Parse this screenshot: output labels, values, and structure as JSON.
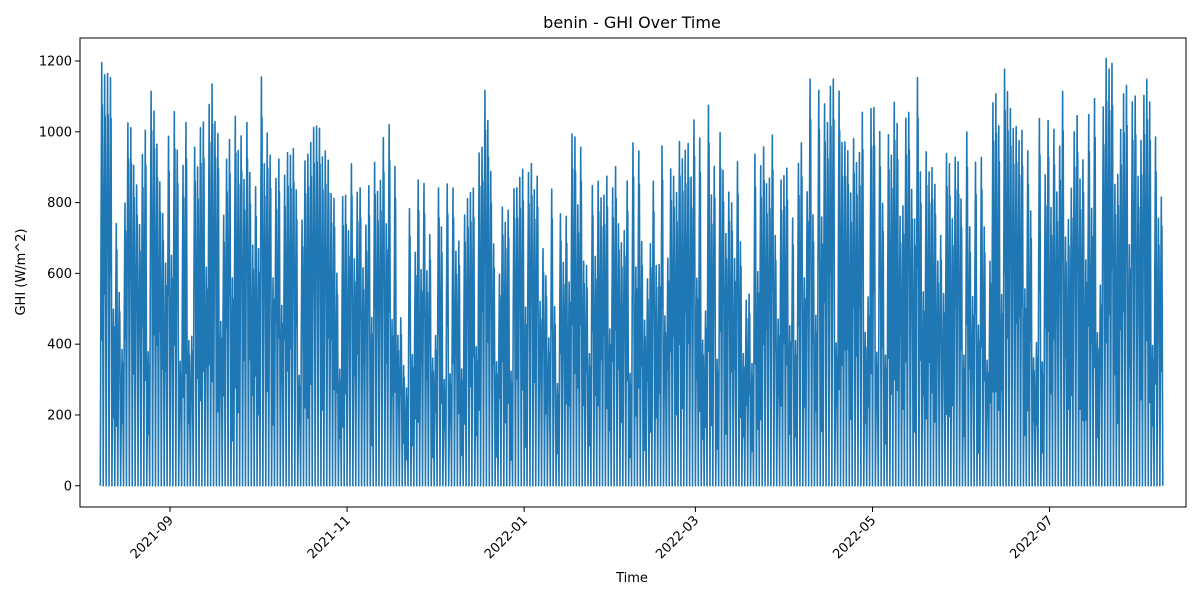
{
  "chart_data": {
    "type": "line",
    "title": "benin - GHI Over Time",
    "xlabel": "Time",
    "ylabel": "GHI (W/m^2)",
    "xlim": [
      "2021-08-01",
      "2022-08-17"
    ],
    "ylim": [
      -60,
      1265
    ],
    "x_ticks": [
      "2021-09",
      "2021-11",
      "2022-01",
      "2022-03",
      "2022-05",
      "2022-07"
    ],
    "y_ticks": [
      0,
      200,
      400,
      600,
      800,
      1000,
      1200
    ],
    "grid": false,
    "line_color": "#1f77b4",
    "series": [
      {
        "x_start": "2021-08-08",
        "x_end": "2022-08-08",
        "daily_peak_points": [
          [
            "2021-08-08",
            1210
          ],
          [
            "2021-08-11",
            1210
          ],
          [
            "2021-08-14",
            940
          ],
          [
            "2021-08-17",
            1210
          ],
          [
            "2021-08-20",
            950
          ],
          [
            "2021-08-23",
            1100
          ],
          [
            "2021-08-26",
            1210
          ],
          [
            "2021-08-29",
            780
          ],
          [
            "2021-09-01",
            1210
          ],
          [
            "2021-09-04",
            960
          ],
          [
            "2021-09-07",
            1060
          ],
          [
            "2021-09-10",
            1190
          ],
          [
            "2021-09-13",
            1040
          ],
          [
            "2021-09-16",
            1210
          ],
          [
            "2021-09-19",
            1080
          ],
          [
            "2021-09-22",
            980
          ],
          [
            "2021-09-25",
            1210
          ],
          [
            "2021-09-28",
            1000
          ],
          [
            "2021-10-01",
            1210
          ],
          [
            "2021-10-05",
            1000
          ],
          [
            "2021-10-10",
            980
          ],
          [
            "2021-10-15",
            990
          ],
          [
            "2021-10-20",
            1150
          ],
          [
            "2021-10-25",
            930
          ],
          [
            "2021-10-30",
            960
          ],
          [
            "2021-11-05",
            900
          ],
          [
            "2021-11-10",
            930
          ],
          [
            "2021-11-15",
            1040
          ],
          [
            "2021-11-20",
            920
          ],
          [
            "2021-11-25",
            915
          ],
          [
            "2021-11-30",
            1000
          ],
          [
            "2021-12-05",
            880
          ],
          [
            "2021-12-10",
            840
          ],
          [
            "2021-12-15",
            1020
          ],
          [
            "2021-12-18",
            1150
          ],
          [
            "2021-12-22",
            870
          ],
          [
            "2021-12-28",
            860
          ],
          [
            "2022-01-03",
            930
          ],
          [
            "2022-01-08",
            830
          ],
          [
            "2022-01-13",
            900
          ],
          [
            "2022-01-18",
            1065
          ],
          [
            "2022-01-23",
            940
          ],
          [
            "2022-01-28",
            950
          ],
          [
            "2022-02-02",
            960
          ],
          [
            "2022-02-07",
            990
          ],
          [
            "2022-02-12",
            960
          ],
          [
            "2022-02-17",
            980
          ],
          [
            "2022-02-22",
            1030
          ],
          [
            "2022-02-27",
            1040
          ],
          [
            "2022-03-04",
            1140
          ],
          [
            "2022-03-08",
            1040
          ],
          [
            "2022-03-12",
            880
          ],
          [
            "2022-03-16",
            940
          ],
          [
            "2022-03-21",
            960
          ],
          [
            "2022-03-26",
            1000
          ],
          [
            "2022-03-31",
            1020
          ],
          [
            "2022-04-05",
            1000
          ],
          [
            "2022-04-10",
            1195
          ],
          [
            "2022-04-15",
            1100
          ],
          [
            "2022-04-18",
            1210
          ],
          [
            "2022-04-22",
            1040
          ],
          [
            "2022-04-27",
            1060
          ],
          [
            "2022-05-01",
            1210
          ],
          [
            "2022-05-05",
            1100
          ],
          [
            "2022-05-10",
            1080
          ],
          [
            "2022-05-15",
            1210
          ],
          [
            "2022-05-20",
            960
          ],
          [
            "2022-05-25",
            1020
          ],
          [
            "2022-05-30",
            1100
          ],
          [
            "2022-06-04",
            1060
          ],
          [
            "2022-06-09",
            1100
          ],
          [
            "2022-06-14",
            1210
          ],
          [
            "2022-06-19",
            1140
          ],
          [
            "2022-06-24",
            1050
          ],
          [
            "2022-06-29",
            1090
          ],
          [
            "2022-07-03",
            1190
          ],
          [
            "2022-07-08",
            1140
          ],
          [
            "2022-07-13",
            1180
          ],
          [
            "2022-07-18",
            1210
          ],
          [
            "2022-07-23",
            1210
          ],
          [
            "2022-07-28",
            1120
          ],
          [
            "2022-08-02",
            1210
          ],
          [
            "2022-08-06",
            1150
          ],
          [
            "2022-08-08",
            950
          ]
        ]
      }
    ]
  }
}
